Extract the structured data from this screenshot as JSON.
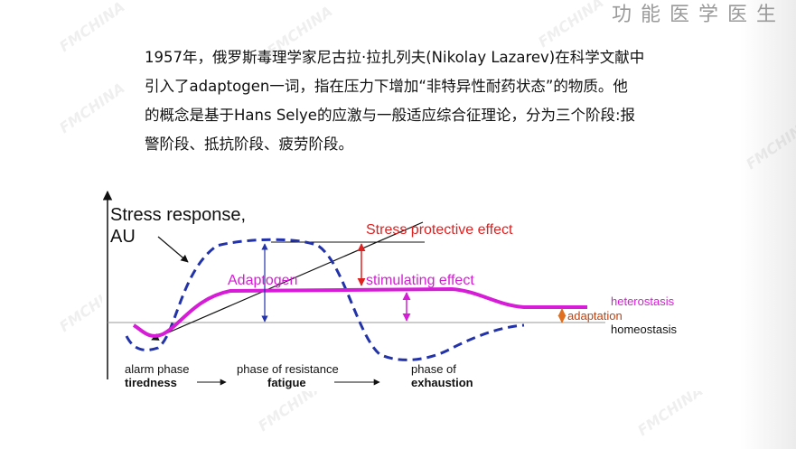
{
  "header": {
    "brand": "功能医学医生"
  },
  "watermark": "FMCHINA",
  "paragraph": {
    "lines": [
      "1957年，俄罗斯毒理学家尼古拉·拉扎列夫(Nikolay Lazarev)在科学文献中",
      "引入了adaptogen一词，指在压力下增加“非特异性耐药状态”的物质。他",
      "的概念是基于Hans Selye的应激与一般适应综合征理论，分为三个阶段:报",
      "警阶段、抵抗阶段、疲劳阶段。"
    ]
  },
  "diagram": {
    "axis_label": [
      "Stress response,",
      "AU"
    ],
    "stress_protective_effect": "Stress protective effect",
    "adaptogen": "Adaptogen",
    "stimulating_effect": "stimulating effect",
    "heterostasis": "heterostasis",
    "adaptation": "adaptation",
    "homeostasis": "homeostasis",
    "phases": [
      "alarm phase",
      "phase of resistance",
      "phase of"
    ],
    "states": [
      "tiredness",
      "fatigue",
      "exhaustion"
    ]
  }
}
